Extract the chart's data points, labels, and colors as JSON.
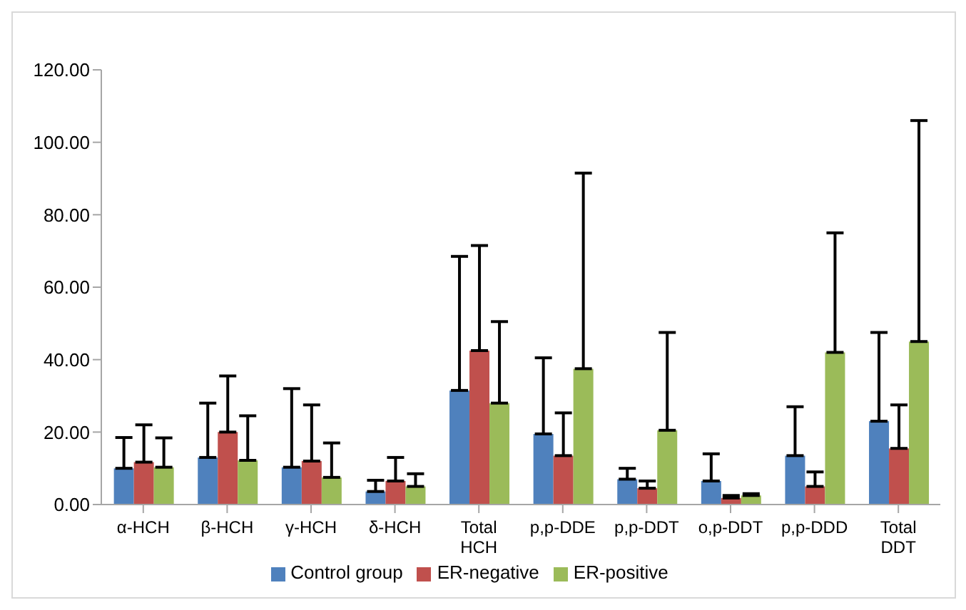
{
  "chart_data": {
    "type": "bar",
    "categories": [
      "α-HCH",
      "β-HCH",
      "γ-HCH",
      "δ-HCH",
      "Total HCH",
      "p,p-DDE",
      "p,p-DDT",
      "o,p-DDT",
      "p,p-DDD",
      "Total DDT"
    ],
    "series": [
      {
        "name": "Control group",
        "color": "#4f81bd",
        "values": [
          10,
          13,
          10.3,
          3.6,
          31.5,
          19.5,
          7,
          6.5,
          13.5,
          23
        ],
        "errors": [
          [
            10,
            18.5
          ],
          [
            13,
            28
          ],
          [
            10.3,
            32
          ],
          [
            3.6,
            6.7
          ],
          [
            31.5,
            68.5
          ],
          [
            19.5,
            40.5
          ],
          [
            7,
            10
          ],
          [
            6.5,
            14
          ],
          [
            13.5,
            27
          ],
          [
            23,
            47.5
          ]
        ]
      },
      {
        "name": "ER-negative",
        "color": "#c0504d",
        "values": [
          11.7,
          20,
          12,
          6.5,
          42.5,
          13.5,
          4.5,
          1.8,
          5,
          15.5
        ],
        "errors": [
          [
            11.7,
            22
          ],
          [
            20,
            35.5
          ],
          [
            12,
            27.5
          ],
          [
            6.5,
            13
          ],
          [
            42.5,
            71.5
          ],
          [
            13.5,
            25.3
          ],
          [
            4.5,
            6.5
          ],
          [
            1.8,
            2.5
          ],
          [
            5,
            9
          ],
          [
            15.5,
            27.5
          ]
        ]
      },
      {
        "name": "ER-positive",
        "color": "#9bbb59",
        "values": [
          10.3,
          12.2,
          7.5,
          5,
          28,
          37.5,
          20.5,
          2.5,
          42,
          45
        ],
        "errors": [
          [
            10.3,
            18.4
          ],
          [
            12.2,
            24.5
          ],
          [
            7.5,
            17
          ],
          [
            5,
            8.5
          ],
          [
            28,
            50.5
          ],
          [
            37.5,
            91.5
          ],
          [
            20.5,
            47.5
          ],
          [
            2.5,
            3
          ],
          [
            42,
            75
          ],
          [
            45,
            106
          ]
        ]
      }
    ],
    "ylim": [
      0,
      120
    ],
    "yticks": [
      {
        "value": 0,
        "label": "0.00"
      },
      {
        "value": 20,
        "label": "20.00"
      },
      {
        "value": 40,
        "label": "40.00"
      },
      {
        "value": 60,
        "label": "60.00"
      },
      {
        "value": 80,
        "label": "80.00"
      },
      {
        "value": 100,
        "label": "100.00"
      },
      {
        "value": 120,
        "label": "120.00"
      }
    ],
    "grid": false,
    "legend": "bottom"
  }
}
